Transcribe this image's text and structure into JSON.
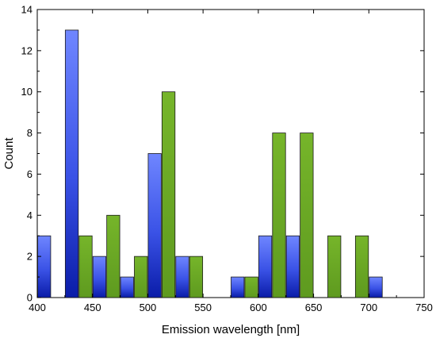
{
  "chart_data": {
    "type": "bar",
    "title": "",
    "xlabel": "Emission wavelength [nm]",
    "ylabel": "Count",
    "xlim": [
      400,
      750
    ],
    "ylim": [
      0,
      14
    ],
    "x_ticks": [
      400,
      450,
      500,
      550,
      600,
      650,
      700,
      750
    ],
    "y_ticks": [
      0,
      2,
      4,
      6,
      8,
      10,
      12,
      14
    ],
    "grid": false,
    "legend": "none",
    "bin_width": 25,
    "x": [
      400,
      425,
      450,
      475,
      500,
      525,
      575,
      600,
      625,
      650,
      675,
      700
    ],
    "series": [
      {
        "color": "#4b63f0",
        "values": [
          3,
          13,
          2,
          1,
          7,
          2,
          1,
          3,
          3,
          0,
          0,
          1
        ]
      },
      {
        "color": "#6aa424",
        "values": [
          0,
          3,
          4,
          2,
          10,
          2,
          1,
          8,
          8,
          3,
          3,
          0
        ]
      }
    ]
  }
}
